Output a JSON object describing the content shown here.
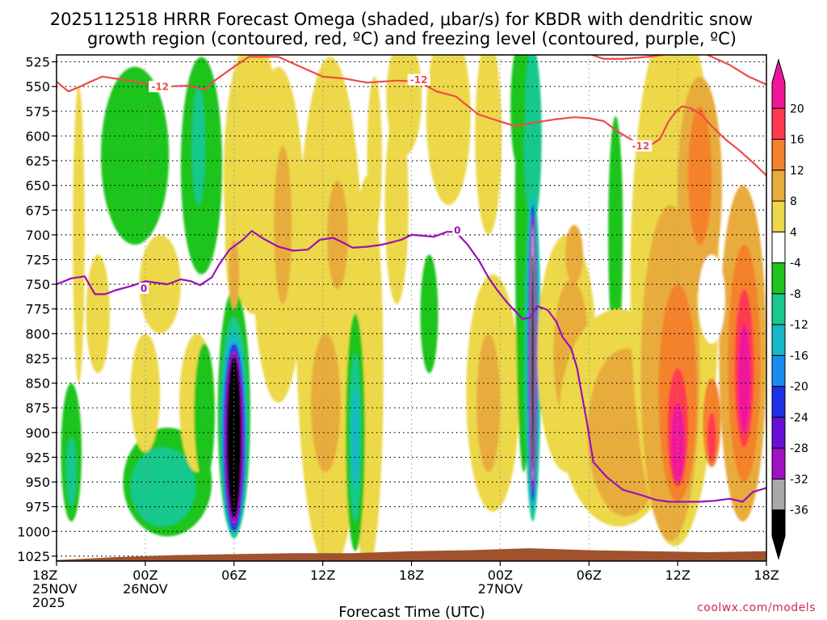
{
  "chart_data": {
    "type": "heatmap",
    "title_lines": [
      "2025112518 HRRR Forecast Omega (shaded, μbar/s) for KBDR with dendritic snow",
      "growth region (contoured, red, ºC) and freezing level (contoured, purple, ºC)"
    ],
    "xlabel": "Forecast Time (UTC)",
    "ylabel": "",
    "credit": "coolwx.com/models",
    "x_range_hours": [
      0,
      48
    ],
    "x_ticks": [
      {
        "hour": 0,
        "lines": [
          "18Z",
          "25NOV",
          "2025"
        ]
      },
      {
        "hour": 6,
        "lines": [
          "00Z",
          "26NOV"
        ]
      },
      {
        "hour": 12,
        "lines": [
          "06Z"
        ]
      },
      {
        "hour": 18,
        "lines": [
          "12Z"
        ]
      },
      {
        "hour": 24,
        "lines": [
          "18Z"
        ]
      },
      {
        "hour": 30,
        "lines": [
          "00Z",
          "27NOV"
        ]
      },
      {
        "hour": 36,
        "lines": [
          "06Z"
        ]
      },
      {
        "hour": 42,
        "lines": [
          "12Z"
        ]
      },
      {
        "hour": 48,
        "lines": [
          "18Z"
        ]
      }
    ],
    "y_range_hpa": [
      1030,
      518
    ],
    "y_ticks": [
      525,
      550,
      575,
      600,
      625,
      650,
      675,
      700,
      725,
      750,
      775,
      800,
      825,
      850,
      875,
      900,
      925,
      950,
      975,
      1000,
      1025
    ],
    "colorbar": {
      "labels": [
        "20",
        "16",
        "12",
        "8",
        "4",
        "-4",
        "-8",
        "-12",
        "-16",
        "-20",
        "-24",
        "-28",
        "-32",
        "-36"
      ],
      "label_values": [
        20,
        16,
        12,
        8,
        4,
        -4,
        -8,
        -12,
        -16,
        -20,
        -24,
        -28,
        -32,
        -36
      ],
      "segments": [
        {
          "from": 20,
          "to": 24,
          "color": "#f0169a"
        },
        {
          "from": 16,
          "to": 20,
          "color": "#ff3a50"
        },
        {
          "from": 12,
          "to": 16,
          "color": "#f4822c"
        },
        {
          "from": 8,
          "to": 12,
          "color": "#e8ac3c"
        },
        {
          "from": 4,
          "to": 8,
          "color": "#ecd84a"
        },
        {
          "from": -4,
          "to": 4,
          "color": "#ffffff"
        },
        {
          "from": -8,
          "to": -4,
          "color": "#1cc41c"
        },
        {
          "from": -12,
          "to": -8,
          "color": "#18c88c"
        },
        {
          "from": -16,
          "to": -12,
          "color": "#16b8c8"
        },
        {
          "from": -20,
          "to": -16,
          "color": "#1a8cf0"
        },
        {
          "from": -24,
          "to": -20,
          "color": "#1c30e6"
        },
        {
          "from": -28,
          "to": -24,
          "color": "#6810d8"
        },
        {
          "from": -32,
          "to": -28,
          "color": "#a010c4"
        },
        {
          "from": -36,
          "to": -32,
          "color": "#a8a8a8"
        },
        {
          "from": -40,
          "to": -36,
          "color": "#000000"
        }
      ]
    },
    "omega_features": [
      {
        "t": 1.5,
        "p": 700,
        "dt": 0.4,
        "dp": 150,
        "value": 5
      },
      {
        "t": 2.8,
        "p": 780,
        "dt": 0.8,
        "dp": 60,
        "value": 5
      },
      {
        "t": 1.0,
        "p": 920,
        "dt": 0.7,
        "dp": 70,
        "value": -8
      },
      {
        "t": 1.0,
        "p": 940,
        "dt": 0.35,
        "dp": 35,
        "value": -12
      },
      {
        "t": 5.3,
        "p": 620,
        "dt": 2.3,
        "dp": 90,
        "value": -8
      },
      {
        "t": 7.0,
        "p": 750,
        "dt": 1.4,
        "dp": 50,
        "value": 5
      },
      {
        "t": 7.5,
        "p": 950,
        "dt": 3.0,
        "dp": 55,
        "value": -8
      },
      {
        "t": 7.2,
        "p": 955,
        "dt": 2.2,
        "dp": 40,
        "value": -12
      },
      {
        "t": 6.0,
        "p": 860,
        "dt": 1.0,
        "dp": 60,
        "value": 5
      },
      {
        "t": 9.5,
        "p": 870,
        "dt": 1.2,
        "dp": 70,
        "value": 5
      },
      {
        "t": 10.0,
        "p": 880,
        "dt": 0.7,
        "dp": 70,
        "value": -8
      },
      {
        "t": 9.8,
        "p": 630,
        "dt": 1.4,
        "dp": 110,
        "value": -8
      },
      {
        "t": 9.6,
        "p": 610,
        "dt": 0.45,
        "dp": 60,
        "value": -12
      },
      {
        "t": 12.0,
        "p": 880,
        "dt": 1.1,
        "dp": 125,
        "value": -8
      },
      {
        "t": 12.0,
        "p": 895,
        "dt": 0.95,
        "dp": 112,
        "value": -12
      },
      {
        "t": 12.0,
        "p": 900,
        "dt": 0.85,
        "dp": 102,
        "value": -16
      },
      {
        "t": 12.0,
        "p": 905,
        "dt": 0.75,
        "dp": 95,
        "value": -24
      },
      {
        "t": 12.0,
        "p": 905,
        "dt": 0.62,
        "dp": 88,
        "value": -30
      },
      {
        "t": 12.0,
        "p": 905,
        "dt": 0.5,
        "dp": 82,
        "value": -40
      },
      {
        "t": 13.3,
        "p": 640,
        "dt": 2.0,
        "dp": 140,
        "value": 5
      },
      {
        "t": 12.0,
        "p": 700,
        "dt": 0.6,
        "dp": 70,
        "value": 5
      },
      {
        "t": 12.0,
        "p": 740,
        "dt": 0.35,
        "dp": 35,
        "value": 10
      },
      {
        "t": 15.0,
        "p": 700,
        "dt": 1.8,
        "dp": 170,
        "value": 5
      },
      {
        "t": 15.3,
        "p": 690,
        "dt": 0.6,
        "dp": 80,
        "value": 10
      },
      {
        "t": 18.5,
        "p": 780,
        "dt": 2.3,
        "dp": 260,
        "value": 5
      },
      {
        "t": 18.2,
        "p": 870,
        "dt": 1.0,
        "dp": 70,
        "value": 10
      },
      {
        "t": 19.0,
        "p": 700,
        "dt": 0.7,
        "dp": 55,
        "value": 10
      },
      {
        "t": 21.5,
        "p": 620,
        "dt": 0.5,
        "dp": 80,
        "value": 5
      },
      {
        "t": 21.0,
        "p": 840,
        "dt": 1.1,
        "dp": 200,
        "value": 5
      },
      {
        "t": 23.0,
        "p": 670,
        "dt": 0.8,
        "dp": 100,
        "value": 5
      },
      {
        "t": 23.5,
        "p": 560,
        "dt": 1.2,
        "dp": 60,
        "value": 5
      },
      {
        "t": 25.2,
        "p": 780,
        "dt": 0.6,
        "dp": 60,
        "value": -8
      },
      {
        "t": 20.2,
        "p": 900,
        "dt": 0.65,
        "dp": 120,
        "value": -8
      },
      {
        "t": 20.2,
        "p": 905,
        "dt": 0.42,
        "dp": 85,
        "value": -12
      },
      {
        "t": 20.2,
        "p": 905,
        "dt": 0.22,
        "dp": 50,
        "value": -16
      },
      {
        "t": 26.5,
        "p": 580,
        "dt": 1.5,
        "dp": 90,
        "value": 5
      },
      {
        "t": 29.2,
        "p": 600,
        "dt": 0.9,
        "dp": 100,
        "value": 5
      },
      {
        "t": 29.5,
        "p": 860,
        "dt": 1.8,
        "dp": 120,
        "value": 5
      },
      {
        "t": 29.2,
        "p": 870,
        "dt": 0.8,
        "dp": 70,
        "value": 10
      },
      {
        "t": 31.6,
        "p": 680,
        "dt": 0.6,
        "dp": 260,
        "value": -8
      },
      {
        "t": 32.2,
        "p": 600,
        "dt": 0.6,
        "dp": 90,
        "value": -12
      },
      {
        "t": 31.2,
        "p": 570,
        "dt": 0.5,
        "dp": 60,
        "value": -8
      },
      {
        "t": 32.2,
        "p": 820,
        "dt": 0.55,
        "dp": 170,
        "value": -12
      },
      {
        "t": 32.2,
        "p": 820,
        "dt": 0.42,
        "dp": 160,
        "value": -16
      },
      {
        "t": 32.2,
        "p": 820,
        "dt": 0.32,
        "dp": 150,
        "value": -24
      },
      {
        "t": 32.2,
        "p": 820,
        "dt": 0.25,
        "dp": 140,
        "value": -30
      },
      {
        "t": 32.2,
        "p": 820,
        "dt": 0.17,
        "dp": 130,
        "value": -34
      },
      {
        "t": 32.2,
        "p": 830,
        "dt": 0.1,
        "dp": 110,
        "value": -40
      },
      {
        "t": 34.5,
        "p": 820,
        "dt": 2.0,
        "dp": 120,
        "value": 5
      },
      {
        "t": 34.8,
        "p": 820,
        "dt": 1.2,
        "dp": 75,
        "value": 10
      },
      {
        "t": 35.0,
        "p": 720,
        "dt": 0.6,
        "dp": 30,
        "value": 10
      },
      {
        "t": 37.8,
        "p": 700,
        "dt": 0.5,
        "dp": 120,
        "value": -8
      },
      {
        "t": 38.0,
        "p": 885,
        "dt": 4.0,
        "dp": 110,
        "value": 5
      },
      {
        "t": 38.5,
        "p": 900,
        "dt": 2.6,
        "dp": 85,
        "value": 10
      },
      {
        "t": 41.8,
        "p": 745,
        "dt": 3.0,
        "dp": 270,
        "value": 5
      },
      {
        "t": 41.5,
        "p": 840,
        "dt": 2.0,
        "dp": 170,
        "value": 10
      },
      {
        "t": 42.0,
        "p": 860,
        "dt": 1.3,
        "dp": 110,
        "value": 14
      },
      {
        "t": 42.0,
        "p": 895,
        "dt": 0.7,
        "dp": 60,
        "value": 18
      },
      {
        "t": 42.0,
        "p": 910,
        "dt": 0.45,
        "dp": 40,
        "value": 22
      },
      {
        "t": 43.5,
        "p": 650,
        "dt": 1.5,
        "dp": 110,
        "value": 10
      },
      {
        "t": 43.5,
        "p": 640,
        "dt": 0.8,
        "dp": 70,
        "value": 14
      },
      {
        "t": 46.4,
        "p": 820,
        "dt": 1.6,
        "dp": 170,
        "value": 10
      },
      {
        "t": 46.5,
        "p": 830,
        "dt": 1.1,
        "dp": 120,
        "value": 14
      },
      {
        "t": 46.5,
        "p": 835,
        "dt": 0.65,
        "dp": 80,
        "value": 18
      },
      {
        "t": 46.5,
        "p": 845,
        "dt": 0.42,
        "dp": 55,
        "value": 22
      },
      {
        "t": 44.3,
        "p": 890,
        "dt": 0.6,
        "dp": 45,
        "value": 14
      },
      {
        "t": 44.3,
        "p": 905,
        "dt": 0.3,
        "dp": 25,
        "value": 18
      },
      {
        "t": 44.3,
        "p": 765,
        "dt": 0.9,
        "dp": 45,
        "value": -1
      }
    ],
    "series": [
      {
        "name": "Dendritic growth region (-12 ºC)",
        "color": "#f04a4a",
        "points": [
          [
            0,
            545
          ],
          [
            0.8,
            555
          ],
          [
            1.6,
            550
          ],
          [
            2.3,
            545
          ],
          [
            3.1,
            540
          ],
          [
            4.0,
            542
          ],
          [
            5.2,
            545
          ],
          [
            6.0,
            547
          ],
          [
            7.4,
            550
          ],
          [
            9.0,
            549
          ],
          [
            10.0,
            553
          ],
          [
            10.6,
            545
          ],
          [
            12.0,
            530
          ],
          [
            13.0,
            520
          ],
          [
            15.0,
            520
          ],
          [
            16.5,
            530
          ],
          [
            18.0,
            540
          ],
          [
            19.5,
            542
          ],
          [
            21.0,
            546
          ],
          [
            23.0,
            544
          ],
          [
            24.5,
            545
          ],
          [
            25.7,
            555
          ],
          [
            27.0,
            560
          ],
          [
            28.5,
            578
          ],
          [
            29.5,
            583
          ],
          [
            31.0,
            590
          ],
          [
            32.5,
            586
          ],
          [
            33.8,
            583
          ],
          [
            35.0,
            581
          ],
          [
            36.0,
            582
          ],
          [
            37.0,
            585
          ],
          [
            38.0,
            596
          ],
          [
            39.0,
            605
          ],
          [
            40.0,
            611
          ],
          [
            40.8,
            603
          ],
          [
            41.4,
            585
          ],
          [
            41.9,
            575
          ],
          [
            42.3,
            570
          ],
          [
            42.9,
            572
          ],
          [
            43.6,
            578
          ],
          [
            44.3,
            590
          ],
          [
            45.2,
            603
          ],
          [
            46.2,
            615
          ],
          [
            47.1,
            627
          ],
          [
            48,
            640
          ]
        ]
      },
      {
        "name": "Dendritic growth region upper (-12 ºC)",
        "color": "#f04a4a",
        "points": [
          [
            36.2,
            518
          ],
          [
            37.0,
            522
          ],
          [
            38.3,
            522
          ],
          [
            40.0,
            520
          ],
          [
            41.0,
            518
          ]
        ]
      },
      {
        "name": "Dendritic growth region right (-12 ºC)",
        "color": "#f04a4a",
        "points": [
          [
            44.0,
            518
          ],
          [
            45.5,
            528
          ],
          [
            46.8,
            540
          ],
          [
            48,
            548
          ]
        ]
      },
      {
        "name": "Freezing level (0 ºC)",
        "color": "#9a10b8",
        "points": [
          [
            0,
            750
          ],
          [
            1.0,
            744
          ],
          [
            1.9,
            742
          ],
          [
            2.6,
            760
          ],
          [
            3.3,
            760
          ],
          [
            4.0,
            756
          ],
          [
            5.0,
            752
          ],
          [
            6.0,
            747
          ],
          [
            7.5,
            750
          ],
          [
            8.4,
            745
          ],
          [
            9.1,
            747
          ],
          [
            9.7,
            751
          ],
          [
            10.5,
            743
          ],
          [
            11.0,
            730
          ],
          [
            11.7,
            715
          ],
          [
            12.6,
            705
          ],
          [
            13.2,
            696
          ],
          [
            14.0,
            704
          ],
          [
            15.0,
            712
          ],
          [
            16.0,
            716
          ],
          [
            17.0,
            715
          ],
          [
            17.8,
            705
          ],
          [
            18.7,
            703
          ],
          [
            19.4,
            708
          ],
          [
            20.0,
            713
          ],
          [
            21.0,
            712
          ],
          [
            22.0,
            710
          ],
          [
            22.8,
            707
          ],
          [
            23.3,
            705
          ],
          [
            24.0,
            700
          ],
          [
            24.8,
            701
          ],
          [
            25.5,
            702
          ],
          [
            26.4,
            697
          ],
          [
            27.0,
            697
          ],
          [
            27.8,
            710
          ],
          [
            28.6,
            727
          ],
          [
            29.2,
            743
          ],
          [
            29.8,
            756
          ],
          [
            30.5,
            769
          ],
          [
            31.5,
            785
          ],
          [
            32.0,
            784
          ],
          [
            32.5,
            772
          ],
          [
            33.2,
            776
          ],
          [
            33.8,
            788
          ],
          [
            34.2,
            803
          ],
          [
            34.8,
            815
          ],
          [
            35.2,
            835
          ],
          [
            35.5,
            860
          ],
          [
            35.9,
            893
          ],
          [
            36.3,
            930
          ],
          [
            37.2,
            945
          ],
          [
            38.3,
            958
          ],
          [
            39.5,
            963
          ],
          [
            40.5,
            968
          ],
          [
            41.4,
            970
          ],
          [
            42.5,
            970
          ],
          [
            43.5,
            970
          ],
          [
            44.5,
            969
          ],
          [
            45.5,
            967
          ],
          [
            46.4,
            970
          ],
          [
            47.1,
            960
          ],
          [
            48,
            956
          ]
        ]
      }
    ],
    "contour_labels": [
      {
        "text": "-12",
        "t": 7.0,
        "p": 550,
        "color": "#f04a4a"
      },
      {
        "text": "-12",
        "t": 24.5,
        "p": 543,
        "color": "#f04a4a"
      },
      {
        "text": "-12",
        "t": 39.5,
        "p": 610,
        "color": "#f04a4a"
      },
      {
        "text": "0",
        "t": 5.9,
        "p": 754,
        "color": "#9a10b8"
      },
      {
        "text": "0",
        "t": 27.1,
        "p": 695,
        "color": "#9a10b8"
      }
    ],
    "terrain": {
      "color": "#a0522d",
      "points": [
        [
          0,
          1029
        ],
        [
          4,
          1026
        ],
        [
          8,
          1024
        ],
        [
          12,
          1023
        ],
        [
          16,
          1022
        ],
        [
          20,
          1022
        ],
        [
          24,
          1020
        ],
        [
          28,
          1019
        ],
        [
          32,
          1017
        ],
        [
          36,
          1019
        ],
        [
          40,
          1020
        ],
        [
          44,
          1021
        ],
        [
          48,
          1020
        ]
      ]
    }
  }
}
